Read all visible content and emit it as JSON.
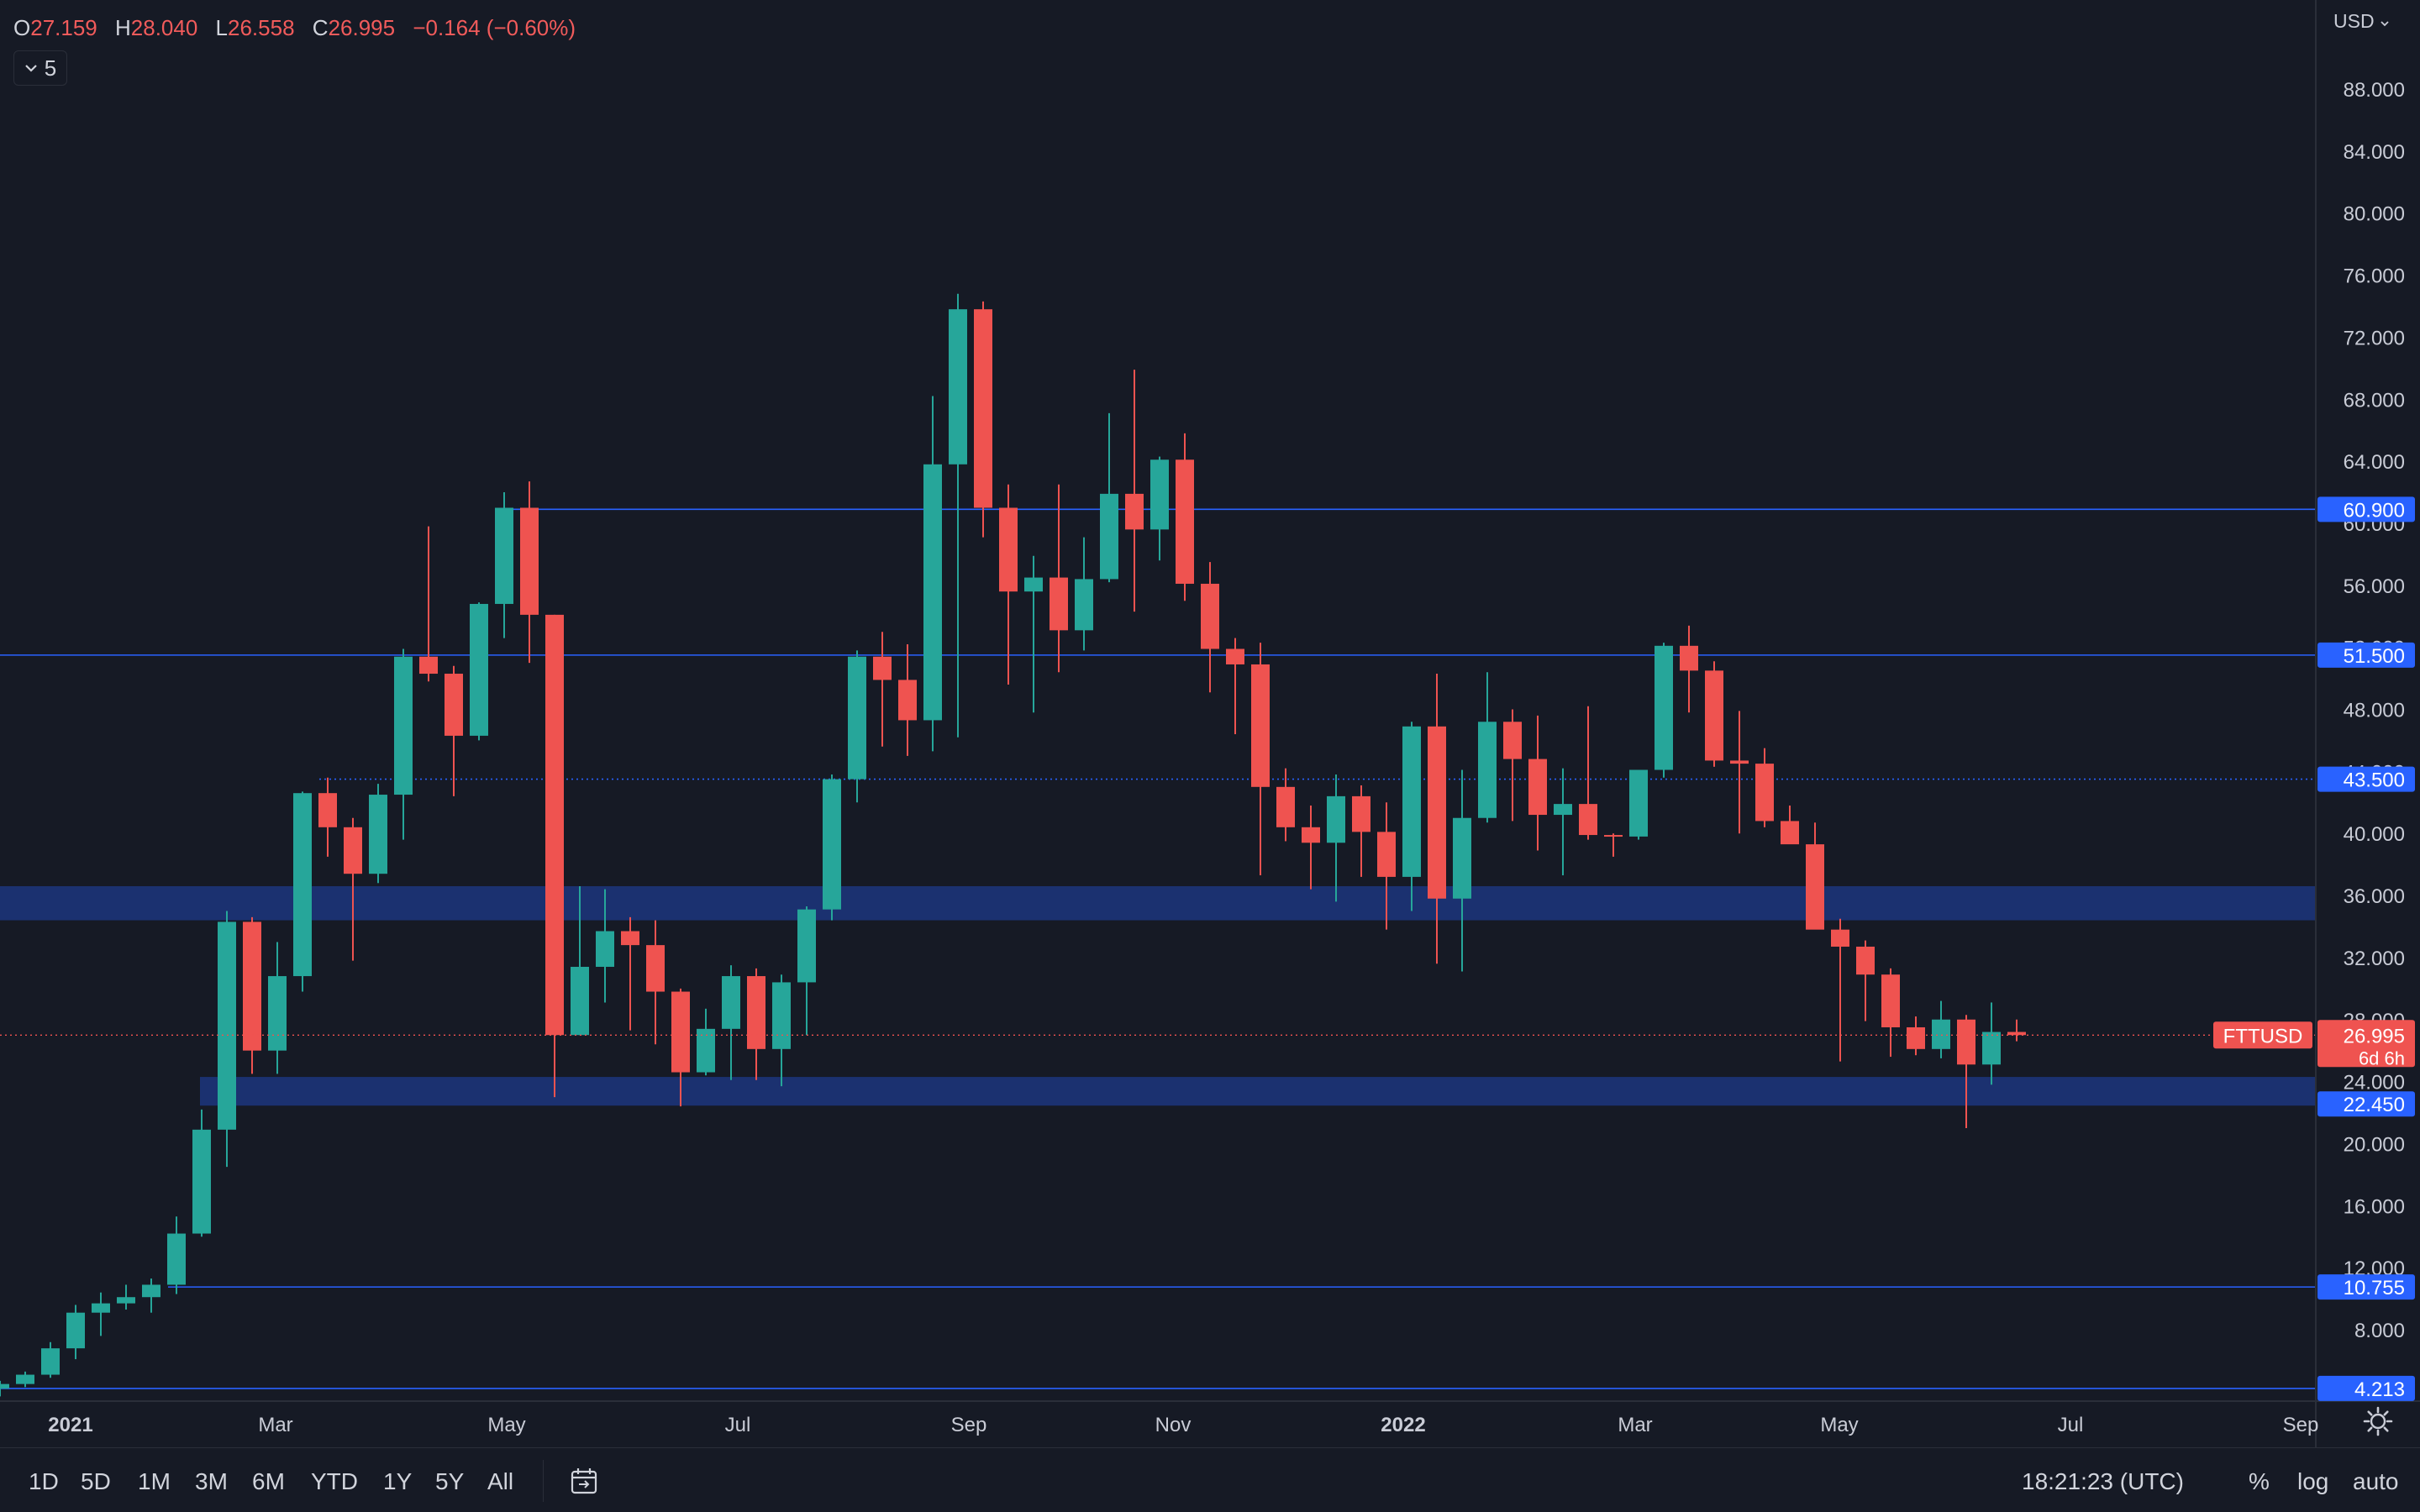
{
  "header": {
    "ohlc": [
      {
        "key": "O",
        "value": "27.159"
      },
      {
        "key": "H",
        "value": "28.040"
      },
      {
        "key": "L",
        "value": "26.558"
      },
      {
        "key": "C",
        "value": "26.995"
      }
    ],
    "change": "−0.164 (−0.60%)",
    "indicator_count": "5",
    "currency": "USD"
  },
  "colors": {
    "background": "#161a25",
    "up": "#26a69a",
    "down": "#ef5350",
    "level_line": "#2962ff",
    "zone": "#1e3a8a"
  },
  "chart_data": {
    "type": "candlestick",
    "symbol": "FTTUSD",
    "interval": "1W",
    "x_labels": [
      "2021",
      "Mar",
      "May",
      "Jul",
      "Sep",
      "Nov",
      "2022",
      "Mar",
      "May",
      "Jul",
      "Sep"
    ],
    "ylim": [
      4,
      92
    ],
    "y_ticks": [
      "88.000",
      "84.000",
      "80.000",
      "76.000",
      "72.000",
      "68.000",
      "64.000",
      "60.000",
      "56.000",
      "52.000",
      "48.000",
      "44.000",
      "40.000",
      "36.000",
      "32.000",
      "28.000",
      "24.000",
      "20.000",
      "16.000",
      "12.000",
      "8.000"
    ],
    "last_price": "26.995",
    "countdown": "6d 6h",
    "horizontal_levels": [
      {
        "label": "60.900",
        "value": 60.9,
        "style": "solid"
      },
      {
        "label": "51.500",
        "value": 51.5,
        "style": "solid"
      },
      {
        "label": "43.500",
        "value": 43.5,
        "style": "dotted"
      },
      {
        "label": "10.755",
        "value": 10.755,
        "style": "solid"
      },
      {
        "label": "4.213",
        "value": 4.213,
        "style": "solid"
      }
    ],
    "zones": [
      {
        "label": "",
        "from": 34.4,
        "to": 36.6
      },
      {
        "label": "22.450",
        "from": 22.45,
        "to": 24.3
      }
    ],
    "candles": [
      [
        4.2,
        4.7,
        3.7,
        4.5
      ],
      [
        4.5,
        5.3,
        4.3,
        5.1
      ],
      [
        5.1,
        7.2,
        4.9,
        6.8
      ],
      [
        6.8,
        9.6,
        6.1,
        9.1
      ],
      [
        9.1,
        10.4,
        7.6,
        9.7
      ],
      [
        9.7,
        10.9,
        9.3,
        10.1
      ],
      [
        10.1,
        11.3,
        9.1,
        10.9
      ],
      [
        10.9,
        15.3,
        10.3,
        14.2
      ],
      [
        14.2,
        22.2,
        14.0,
        20.9
      ],
      [
        20.9,
        35.0,
        18.5,
        34.3
      ],
      [
        34.3,
        34.6,
        24.5,
        26.0
      ],
      [
        26.0,
        33.0,
        24.5,
        30.8
      ],
      [
        30.8,
        42.7,
        29.8,
        42.6
      ],
      [
        42.6,
        43.6,
        38.5,
        40.4
      ],
      [
        40.4,
        41.0,
        31.8,
        37.4
      ],
      [
        37.4,
        43.2,
        36.8,
        42.5
      ],
      [
        42.5,
        51.9,
        39.6,
        51.4
      ],
      [
        51.4,
        59.8,
        49.8,
        50.3
      ],
      [
        50.3,
        50.8,
        42.4,
        46.3
      ],
      [
        46.3,
        54.9,
        46.0,
        54.8
      ],
      [
        54.8,
        62.0,
        52.6,
        61.0
      ],
      [
        61.0,
        62.7,
        51.0,
        54.1
      ],
      [
        54.1,
        54.1,
        23.0,
        27.0
      ],
      [
        27.0,
        36.6,
        27.0,
        31.4
      ],
      [
        31.4,
        36.4,
        29.1,
        33.7
      ],
      [
        33.7,
        34.6,
        27.3,
        32.8
      ],
      [
        32.8,
        34.4,
        26.4,
        29.8
      ],
      [
        29.8,
        30.0,
        22.4,
        24.6
      ],
      [
        24.6,
        28.7,
        24.4,
        27.4
      ],
      [
        27.4,
        31.5,
        24.1,
        30.8
      ],
      [
        30.8,
        31.3,
        24.1,
        26.1
      ],
      [
        26.1,
        30.9,
        23.7,
        30.4
      ],
      [
        30.4,
        35.3,
        27.0,
        35.1
      ],
      [
        35.1,
        43.8,
        34.4,
        43.5
      ],
      [
        43.5,
        51.8,
        42.0,
        51.4
      ],
      [
        51.4,
        53.0,
        45.6,
        49.9
      ],
      [
        49.9,
        52.2,
        45.0,
        47.3
      ],
      [
        47.3,
        68.2,
        45.3,
        63.8
      ],
      [
        63.8,
        74.8,
        46.2,
        73.8
      ],
      [
        73.8,
        74.3,
        59.1,
        61.0
      ],
      [
        61.0,
        62.5,
        49.6,
        55.6
      ],
      [
        55.6,
        57.9,
        47.8,
        56.5
      ],
      [
        56.5,
        62.5,
        50.4,
        53.1
      ],
      [
        53.1,
        59.1,
        51.8,
        56.4
      ],
      [
        56.4,
        67.1,
        56.2,
        61.9
      ],
      [
        61.9,
        69.9,
        54.3,
        59.6
      ],
      [
        59.6,
        64.3,
        57.6,
        64.1
      ],
      [
        64.1,
        65.8,
        55.0,
        56.1
      ],
      [
        56.1,
        57.5,
        49.1,
        51.9
      ],
      [
        51.9,
        52.6,
        46.4,
        50.9
      ],
      [
        50.9,
        52.3,
        37.3,
        43.0
      ],
      [
        43.0,
        44.2,
        39.5,
        40.4
      ],
      [
        40.4,
        41.8,
        36.4,
        39.4
      ],
      [
        39.4,
        43.8,
        35.6,
        42.4
      ],
      [
        42.4,
        43.1,
        37.2,
        40.1
      ],
      [
        40.1,
        42.0,
        33.8,
        37.2
      ],
      [
        37.2,
        47.2,
        35.0,
        46.9
      ],
      [
        46.9,
        50.3,
        31.6,
        35.8
      ],
      [
        35.8,
        44.1,
        31.1,
        41.0
      ],
      [
        41.0,
        50.4,
        40.7,
        47.2
      ],
      [
        47.2,
        48.0,
        40.8,
        44.8
      ],
      [
        44.8,
        47.6,
        38.9,
        41.2
      ],
      [
        41.2,
        44.2,
        37.3,
        41.9
      ],
      [
        41.9,
        48.2,
        39.6,
        39.9
      ],
      [
        39.9,
        40.0,
        38.5,
        39.8
      ],
      [
        39.8,
        44.1,
        39.6,
        44.1
      ],
      [
        44.1,
        52.3,
        43.6,
        52.1
      ],
      [
        52.1,
        53.4,
        47.8,
        50.5
      ],
      [
        50.5,
        51.1,
        44.3,
        44.7
      ],
      [
        44.7,
        47.9,
        40.0,
        44.5
      ],
      [
        44.5,
        45.5,
        40.4,
        40.8
      ],
      [
        40.8,
        41.8,
        39.4,
        39.3
      ],
      [
        39.3,
        40.7,
        34.1,
        33.8
      ],
      [
        33.8,
        34.5,
        25.3,
        32.7
      ],
      [
        32.7,
        33.1,
        27.9,
        30.9
      ],
      [
        30.9,
        31.3,
        25.6,
        27.5
      ],
      [
        27.5,
        28.2,
        25.7,
        26.1
      ],
      [
        26.1,
        29.2,
        25.5,
        28.0
      ],
      [
        28.0,
        28.3,
        21.0,
        25.1
      ],
      [
        25.1,
        29.1,
        23.8,
        27.2
      ],
      [
        27.2,
        28.0,
        26.6,
        27.0
      ]
    ],
    "time_axis_positions": {
      "note": "weekly candles from 2021-01 to 2022-06"
    }
  },
  "bottom_bar": {
    "ranges": [
      "1D",
      "5D",
      "1M",
      "3M",
      "6M",
      "YTD",
      "1Y",
      "5Y",
      "All"
    ],
    "clock": "18:21:23 (UTC)",
    "percent": "%",
    "log": "log",
    "auto": "auto"
  }
}
